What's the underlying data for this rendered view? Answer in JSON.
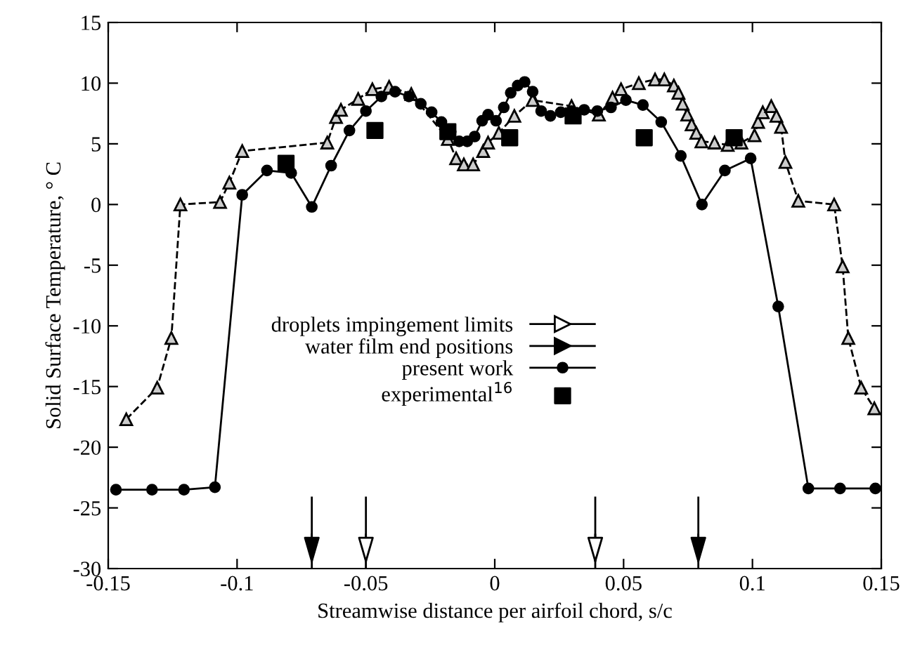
{
  "chart_data": {
    "type": "line",
    "xlabel": "Streamwise distance per airfoil chord, s/c",
    "ylabel": "Solid Surface Temperature, ° C",
    "xlim": [
      -0.15,
      0.15
    ],
    "xticks": [
      -0.15,
      -0.1,
      -0.05,
      0,
      0.05,
      0.1,
      0.15
    ],
    "ylim": [
      -30,
      15
    ],
    "yticks": [
      -30,
      -25,
      -20,
      -15,
      -10,
      -5,
      0,
      5,
      10,
      15
    ],
    "grid": false,
    "legend": "bottom",
    "ref_lines": [
      {
        "axis": "x",
        "value": -0.05,
        "label": "droplets impingement limits",
        "color": "#000000"
      },
      {
        "axis": "x",
        "value": 0.039,
        "color": "#000000"
      },
      {
        "axis": "x",
        "value": -0.071,
        "label": "water film end positions",
        "color": "#000000"
      },
      {
        "axis": "x",
        "value": 0.079,
        "color": "#000000"
      }
    ],
    "series": [
      {
        "name": "present work",
        "color": "#000000",
        "marker": "circle",
        "line_style": "solid",
        "x": [
          -0.147,
          -0.133,
          -0.1206,
          -0.1086,
          -0.098,
          -0.0884,
          -0.079,
          -0.071,
          -0.0635,
          -0.0564,
          -0.05,
          -0.044,
          -0.0387,
          -0.0333,
          -0.0287,
          -0.0245,
          -0.0207,
          -0.0171,
          -0.0138,
          -0.0107,
          -0.0078,
          -0.0049,
          -0.0026,
          0.0005,
          0.0035,
          0.0062,
          0.0089,
          0.0116,
          0.0147,
          0.018,
          0.0216,
          0.0256,
          0.0298,
          0.0347,
          0.0398,
          0.0451,
          0.0509,
          0.0575,
          0.0646,
          0.0722,
          0.0804,
          0.0893,
          0.0993,
          0.11,
          0.1217,
          0.134,
          0.1477
        ],
        "values": [
          -23.5,
          -23.5,
          -23.5,
          -23.3,
          0.8,
          2.8,
          2.6,
          -0.2,
          3.2,
          6.1,
          7.7,
          8.9,
          9.3,
          8.9,
          8.3,
          7.6,
          6.8,
          6.0,
          5.2,
          5.2,
          5.6,
          6.9,
          7.4,
          6.9,
          8.0,
          9.2,
          9.8,
          10.1,
          9.3,
          7.7,
          7.3,
          7.6,
          7.7,
          7.8,
          7.7,
          8.0,
          8.6,
          8.2,
          6.8,
          4.0,
          0.0,
          2.8,
          3.8,
          -8.4,
          -23.4,
          -23.4,
          -23.4
        ]
      },
      {
        "name": "experimental$^{16}$",
        "type": "scatter",
        "color": "#000000",
        "marker": "square",
        "x": [
          -0.081,
          -0.0465,
          -0.0182,
          0.0058,
          0.0304,
          0.058,
          0.0929
        ],
        "values": [
          3.4,
          6.1,
          6.0,
          5.5,
          7.3,
          5.5,
          5.5
        ]
      },
      {
        "color": "#000000",
        "marker": "triangle",
        "line_style": "dashed",
        "x": [
          -0.143,
          -0.131,
          -0.1255,
          -0.122,
          -0.1066,
          -0.103,
          -0.098,
          -0.065,
          -0.0616,
          -0.0597,
          -0.053,
          -0.0475,
          -0.041,
          -0.0324,
          -0.0182,
          -0.015,
          -0.012,
          -0.0084,
          -0.0045,
          -0.0026,
          0.0016,
          0.0076,
          0.0147,
          0.0298,
          0.0404,
          0.0457,
          0.049,
          0.0559,
          0.0622,
          0.0658,
          0.0695,
          0.0713,
          0.0729,
          0.0747,
          0.0764,
          0.0782,
          0.0802,
          0.0853,
          0.0904,
          0.0957,
          0.1008,
          0.1022,
          0.104,
          0.1073,
          0.1093,
          0.1111,
          0.1128,
          0.1178,
          0.1317,
          0.135,
          0.1372,
          0.1422,
          0.1473
        ],
        "values": [
          -17.7,
          -15.1,
          -11.0,
          0.0,
          0.2,
          1.8,
          4.4,
          5.1,
          7.2,
          7.8,
          8.7,
          9.5,
          9.7,
          9.1,
          5.4,
          3.8,
          3.3,
          3.3,
          4.4,
          5.1,
          5.9,
          7.3,
          8.6,
          8.1,
          7.4,
          8.8,
          9.5,
          10.0,
          10.3,
          10.3,
          9.8,
          9.2,
          8.3,
          7.4,
          6.6,
          5.9,
          5.2,
          5.1,
          4.9,
          5.1,
          5.7,
          6.8,
          7.6,
          8.1,
          7.3,
          6.4,
          3.5,
          0.3,
          0.0,
          -5.1,
          -11.0,
          -15.1,
          -16.8
        ]
      }
    ]
  }
}
